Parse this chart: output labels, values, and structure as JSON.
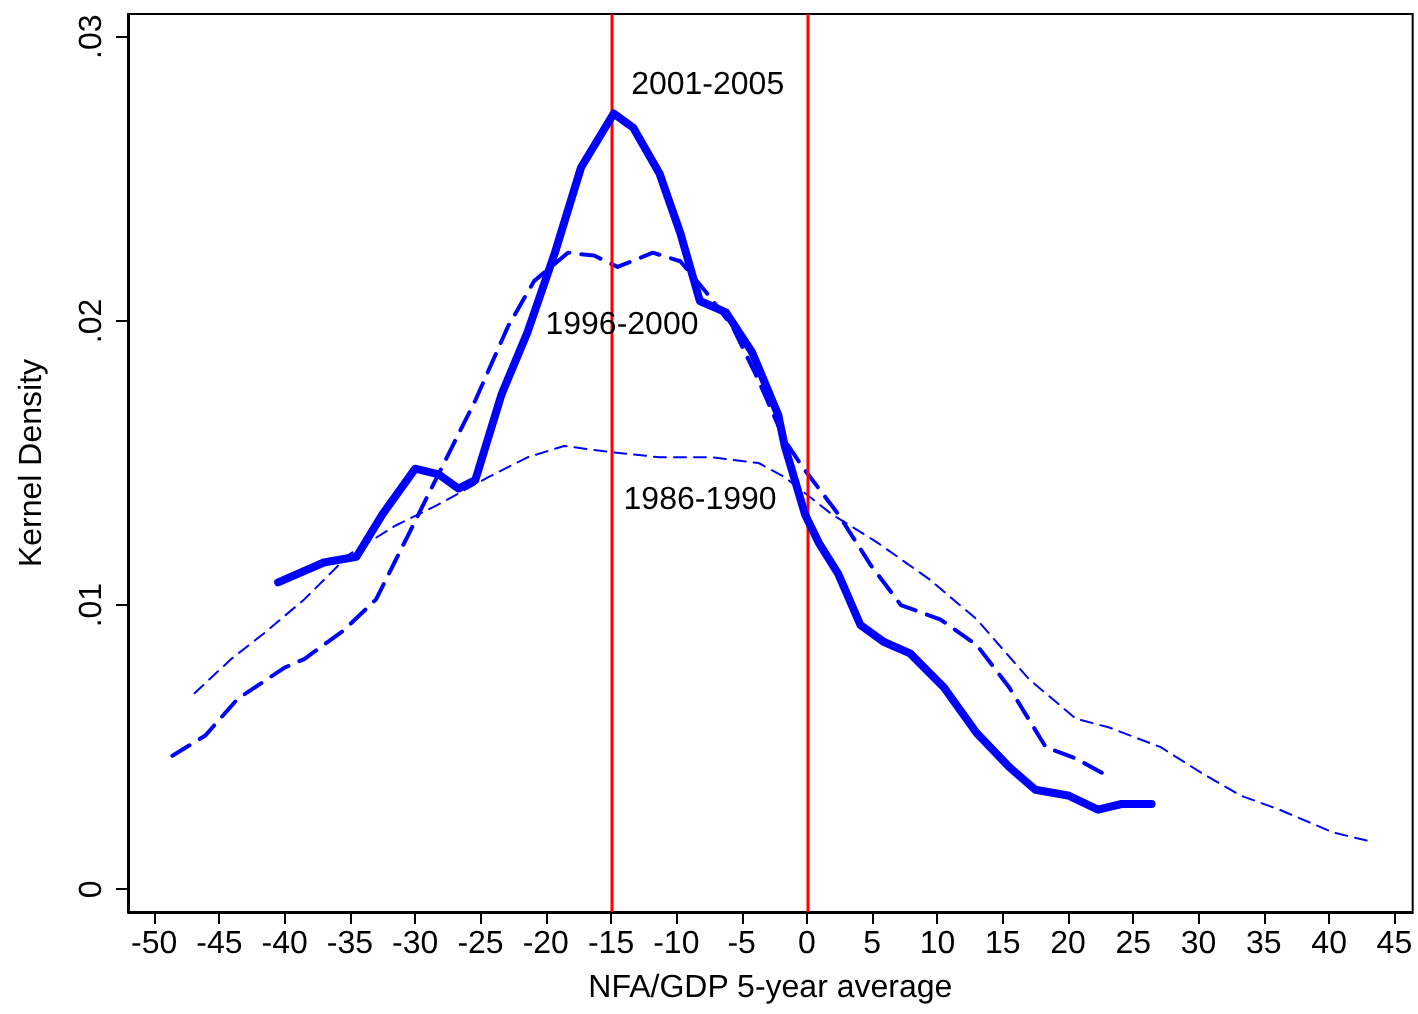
{
  "chart_data": {
    "type": "line",
    "xlabel": "NFA/GDP 5-year average",
    "ylabel": "Kernel Density",
    "series": [
      {
        "name": "1986-1990",
        "color": "#0000ff",
        "line_style": "dashed",
        "x": [
          -46.9,
          -44.1,
          -41.6,
          -38.5,
          -35.0,
          -31.5,
          -28.4,
          -24.4,
          -21.4,
          -18.6,
          -15.3,
          -11.3,
          -7.2,
          -3.7,
          -1.7,
          1.9,
          5.4,
          9.4,
          13.0,
          17.0,
          20.6,
          23.1,
          27.1,
          30.2,
          33.2,
          36.2,
          40.3,
          43.0
        ],
        "values": [
          0.0069,
          0.0081,
          0.009,
          0.0102,
          0.0118,
          0.0128,
          0.0135,
          0.0145,
          0.0152,
          0.0156,
          0.0154,
          0.0152,
          0.0152,
          0.015,
          0.0145,
          0.0132,
          0.0122,
          0.0109,
          0.0095,
          0.0074,
          0.006,
          0.0057,
          0.005,
          0.0041,
          0.0033,
          0.0028,
          0.002,
          0.0017
        ]
      },
      {
        "name": "1996-2000",
        "color": "#0000ff",
        "line_style": "dashed",
        "x": [
          -48.6,
          -46.1,
          -43.6,
          -40.0,
          -38.5,
          -35.5,
          -33.0,
          -30.5,
          -27.9,
          -25.4,
          -22.9,
          -20.9,
          -18.3,
          -16.3,
          -14.5,
          -11.8,
          -9.7,
          -7.7,
          -5.7,
          -3.7,
          -1.7,
          -0.4,
          2.4,
          4.9,
          7.2,
          10.2,
          13.0,
          15.5,
          18.3,
          20.6,
          22.6
        ],
        "values": [
          0.0047,
          0.0054,
          0.0067,
          0.0078,
          0.0081,
          0.0091,
          0.0102,
          0.0125,
          0.0149,
          0.0172,
          0.0198,
          0.0214,
          0.0224,
          0.0223,
          0.0219,
          0.0224,
          0.0221,
          0.021,
          0.0198,
          0.0179,
          0.0158,
          0.0149,
          0.0132,
          0.0114,
          0.01,
          0.0095,
          0.0086,
          0.0071,
          0.005,
          0.0046,
          0.0041
        ]
      },
      {
        "name": "2001-2005",
        "color": "#0000ff",
        "line_style": "solid",
        "x": [
          -40.5,
          -37.0,
          -34.5,
          -32.5,
          -30.0,
          -28.2,
          -26.7,
          -25.4,
          -23.4,
          -21.4,
          -19.3,
          -17.3,
          -14.8,
          -13.3,
          -11.3,
          -9.7,
          -8.2,
          -6.2,
          -4.2,
          -2.2,
          -1.7,
          -0.15,
          0.9,
          2.4,
          4.1,
          5.9,
          7.9,
          10.5,
          13.0,
          15.5,
          17.5,
          20.0,
          22.3,
          24.1,
          26.4
        ],
        "values": [
          0.0108,
          0.0115,
          0.0117,
          0.0132,
          0.0148,
          0.0146,
          0.0141,
          0.0144,
          0.0174,
          0.0196,
          0.0224,
          0.0254,
          0.0273,
          0.0268,
          0.0252,
          0.0231,
          0.0207,
          0.0203,
          0.0189,
          0.0167,
          0.0156,
          0.0132,
          0.0122,
          0.0111,
          0.0093,
          0.0087,
          0.0083,
          0.0071,
          0.0055,
          0.0043,
          0.0035,
          0.0033,
          0.0028,
          0.003,
          0.003
        ]
      }
    ],
    "ref_lines": [
      {
        "axis": "x",
        "value": -15,
        "color": "#ff0000"
      },
      {
        "axis": "x",
        "value": 0,
        "color": "#ff0000"
      }
    ],
    "xlim": [
      -52,
      46.4
    ],
    "xticks": [
      -50,
      -45,
      -40,
      -35,
      -30,
      -25,
      -20,
      -15,
      -10,
      -5,
      0,
      5,
      10,
      15,
      20,
      25,
      30,
      35,
      40,
      45
    ],
    "ylim": [
      -0.0008,
      0.0308
    ],
    "yticks": [
      {
        "value": 0,
        "label": "0"
      },
      {
        "value": 0.01,
        "label": ".01"
      },
      {
        "value": 0.02,
        "label": ".02"
      },
      {
        "value": 0.03,
        "label": ".03"
      }
    ],
    "grid": false,
    "marker": "none"
  }
}
